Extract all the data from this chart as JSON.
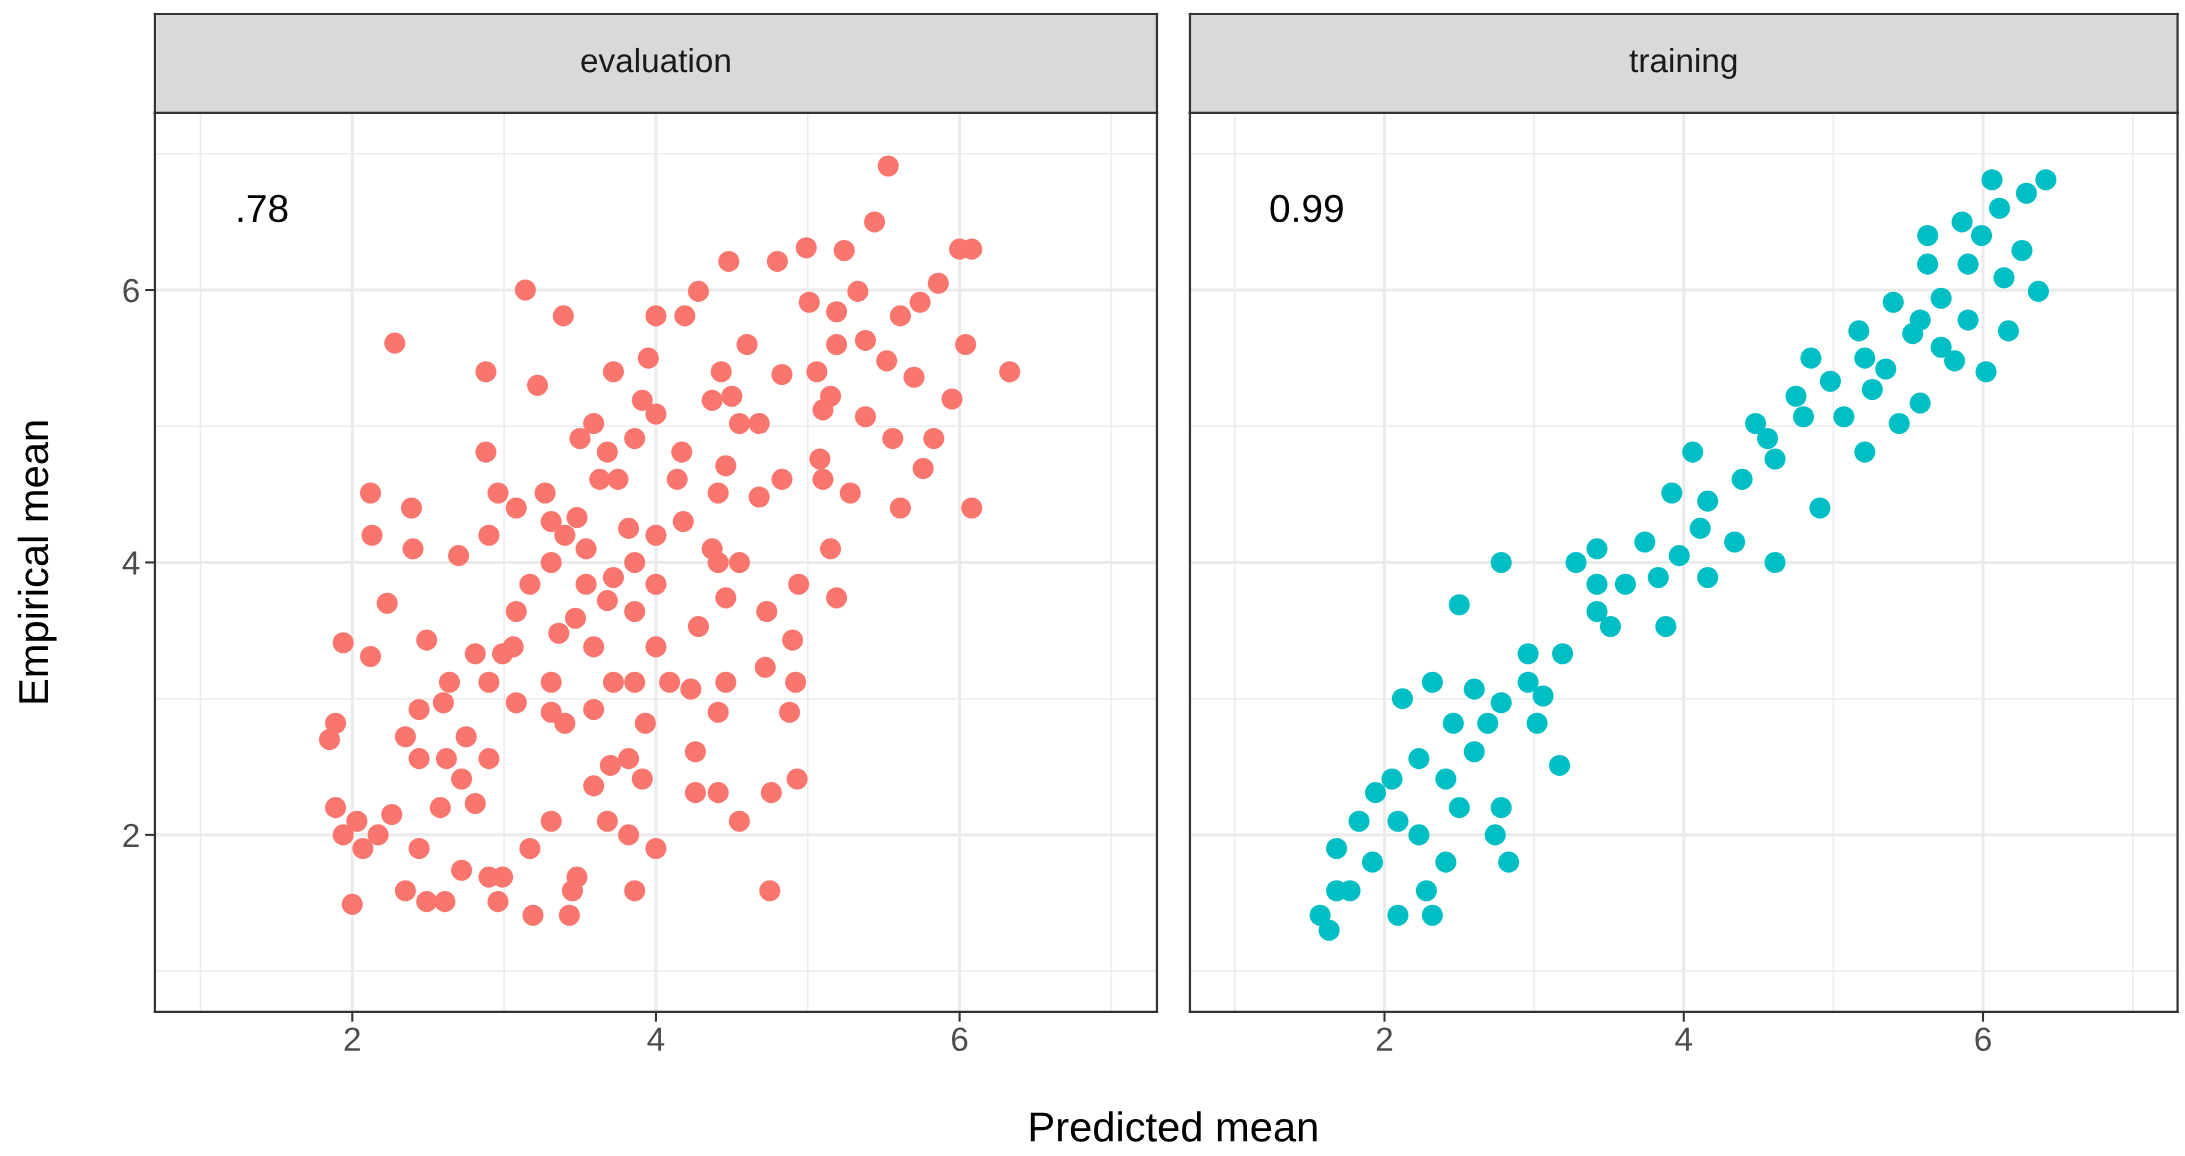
{
  "chart_data": [
    {
      "type": "scatter",
      "title": "evaluation",
      "xlabel": "Predicted mean",
      "ylabel": "Empirical mean",
      "annotations": [
        ".78"
      ],
      "color": "#f8766d",
      "marker": "circle",
      "grid": true,
      "xlim": [
        0.7,
        7.3
      ],
      "ylim": [
        0.7,
        7.3
      ],
      "xticks": [
        {
          "value": 1,
          "label": null
        },
        2,
        {
          "value": 3,
          "label": null
        },
        4,
        {
          "value": 5,
          "label": null
        },
        6,
        {
          "value": 7,
          "label": null
        }
      ],
      "yticks": [
        {
          "value": 1,
          "label": null
        },
        2,
        {
          "value": 3,
          "label": null
        },
        4,
        {
          "value": 5,
          "label": null
        },
        6,
        {
          "value": 7,
          "label": null
        }
      ],
      "x": [
        5.53,
        5.44,
        5.24,
        4.99,
        4.8,
        4.48,
        4.28,
        3.14,
        2.28,
        3.39,
        2.88,
        3.22,
        4.0,
        4.19,
        6.0,
        6.08,
        6.33,
        6.08,
        6.04,
        5.86,
        5.74,
        5.61,
        5.38,
        5.7,
        5.95,
        5.83,
        5.76,
        5.61,
        5.28,
        5.15,
        5.19,
        4.94,
        4.73,
        4.72,
        4.9,
        4.88,
        4.93,
        4.75,
        4.76,
        4.55,
        4.41,
        4.26,
        4.26,
        4.41,
        4.23,
        4.0,
        4.09,
        3.93,
        3.91,
        4.0,
        3.86,
        3.82,
        3.7,
        3.59,
        3.45,
        3.48,
        3.19,
        3.43,
        2.96,
        2.99,
        2.9,
        3.17,
        2.72,
        2.61,
        2.49,
        2.35,
        2.0,
        2.07,
        2.17,
        1.94,
        1.89,
        2.03,
        1.89,
        1.85,
        1.94,
        2.12,
        2.12,
        2.13,
        2.23,
        2.39,
        2.4,
        2.44,
        2.35,
        2.44,
        2.49,
        2.64,
        2.6,
        2.62,
        2.72,
        2.75,
        2.81,
        2.7,
        2.9,
        2.88,
        2.96,
        2.99,
        2.9,
        2.9,
        3.08,
        3.06,
        3.08,
        3.17,
        3.08,
        3.27,
        3.31,
        3.48,
        3.5,
        3.59,
        3.72,
        3.68,
        3.63,
        3.75,
        3.86,
        3.91,
        3.95,
        4.0,
        4.17,
        4.14,
        4.18,
        4.0,
        3.86,
        3.72,
        3.54,
        3.47,
        3.36,
        3.31,
        3.31,
        3.4,
        3.59,
        3.72,
        3.86,
        3.59,
        3.68,
        3.54,
        3.31,
        3.4,
        4.37,
        4.41,
        4.46,
        4.55,
        4.41,
        4.46,
        4.55,
        4.68,
        4.5,
        4.37,
        4.43,
        4.6,
        4.83,
        5.06,
        5.15,
        5.1,
        5.19,
        5.33,
        5.19,
        5.01,
        4.83,
        4.68,
        5.1,
        5.08,
        5.38,
        5.52,
        5.56,
        4.28,
        4.92,
        4.46,
        2.44,
        2.26,
        2.81,
        2.58,
        3.68,
        3.31,
        3.82,
        4.0,
        3.82,
        3.86
      ],
      "values": [
        6.91,
        6.5,
        6.29,
        6.31,
        6.21,
        6.21,
        5.99,
        6.0,
        5.61,
        5.81,
        5.4,
        5.3,
        5.81,
        5.81,
        6.3,
        6.3,
        5.4,
        4.4,
        5.6,
        6.05,
        5.91,
        5.81,
        5.63,
        5.36,
        5.2,
        4.91,
        4.69,
        4.4,
        4.51,
        4.1,
        3.74,
        3.84,
        3.64,
        3.23,
        3.43,
        2.9,
        2.41,
        1.59,
        2.31,
        2.1,
        2.31,
        2.31,
        2.61,
        2.9,
        3.07,
        3.38,
        3.12,
        2.82,
        2.41,
        1.9,
        1.59,
        2.0,
        2.51,
        2.36,
        1.59,
        1.69,
        1.41,
        1.41,
        1.51,
        1.69,
        1.69,
        1.9,
        1.74,
        1.51,
        1.51,
        1.59,
        1.49,
        1.9,
        2.0,
        2.0,
        2.2,
        2.1,
        2.82,
        2.7,
        3.41,
        3.31,
        4.51,
        4.2,
        3.7,
        4.4,
        4.1,
        2.92,
        2.72,
        2.56,
        3.43,
        3.12,
        2.97,
        2.56,
        2.41,
        2.72,
        3.33,
        4.05,
        4.2,
        4.81,
        4.51,
        3.33,
        3.12,
        2.56,
        2.97,
        3.38,
        3.64,
        3.84,
        4.4,
        4.51,
        4.3,
        4.33,
        4.91,
        5.02,
        5.4,
        4.81,
        4.61,
        4.61,
        4.91,
        5.19,
        5.5,
        5.09,
        4.81,
        4.61,
        4.3,
        4.2,
        4.0,
        3.89,
        3.84,
        3.59,
        3.48,
        3.12,
        2.9,
        2.82,
        2.92,
        3.12,
        3.12,
        3.38,
        3.72,
        4.1,
        4.0,
        4.2,
        4.1,
        4.0,
        3.74,
        4.0,
        4.51,
        4.71,
        5.02,
        5.02,
        5.22,
        5.19,
        5.4,
        5.6,
        5.38,
        5.4,
        5.22,
        5.12,
        5.84,
        5.99,
        5.6,
        5.91,
        4.61,
        4.48,
        4.61,
        4.76,
        5.07,
        5.48,
        4.91,
        3.53,
        3.12,
        3.12,
        1.9,
        2.15,
        2.23,
        2.2,
        2.1,
        2.1,
        2.56,
        3.84,
        4.25,
        3.64
      ]
    },
    {
      "type": "scatter",
      "title": "training",
      "annotations": [
        "0.99"
      ],
      "color": "#00bfc4",
      "marker": "circle",
      "grid": true,
      "tick_labels": "x",
      "xlim": [
        0.7,
        7.3
      ],
      "ylim": [
        0.7,
        7.3
      ],
      "xticks": [
        {
          "value": 1,
          "label": null
        },
        2,
        {
          "value": 3,
          "label": null
        },
        4,
        {
          "value": 5,
          "label": null
        },
        6,
        {
          "value": 7,
          "label": null
        }
      ],
      "yticks": [
        {
          "value": 1,
          "label": null
        },
        2,
        {
          "value": 3,
          "label": null
        },
        4,
        {
          "value": 5,
          "label": null
        },
        6,
        {
          "value": 7,
          "label": null
        }
      ],
      "x": [
        6.42,
        6.29,
        6.11,
        6.06,
        5.86,
        5.63,
        5.63,
        6.37,
        6.26,
        6.17,
        6.02,
        5.81,
        5.58,
        5.44,
        5.17,
        5.4,
        4.85,
        5.21,
        4.91,
        4.61,
        4.06,
        4.56,
        3.92,
        3.83,
        3.88,
        3.28,
        3.42,
        2.78,
        2.5,
        2.78,
        3.17,
        3.06,
        2.78,
        2.74,
        2.83,
        2.41,
        2.28,
        2.32,
        2.09,
        1.63,
        1.57,
        1.68,
        1.68,
        1.83,
        1.94,
        2.12,
        2.05,
        2.23,
        2.32,
        2.46,
        2.6,
        2.6,
        2.41,
        2.96,
        3.19,
        3.42,
        3.61,
        3.74,
        4.11,
        4.16,
        4.39,
        4.48,
        4.8,
        4.98,
        5.21,
        5.53,
        5.72,
        5.9,
        5.99,
        4.34,
        4.16,
        3.51,
        2.5,
        2.23,
        1.92,
        3.02,
        3.42,
        4.61,
        5.07,
        4.75,
        5.35,
        5.72,
        5.9,
        3.97,
        2.96,
        2.69,
        2.09,
        1.77,
        5.26,
        6.14,
        5.58
      ],
      "values": [
        6.81,
        6.71,
        6.6,
        6.81,
        6.5,
        6.4,
        6.19,
        5.99,
        6.29,
        5.7,
        5.4,
        5.48,
        5.17,
        5.02,
        5.7,
        5.91,
        5.5,
        4.81,
        4.4,
        4.0,
        4.81,
        4.91,
        4.51,
        3.89,
        3.53,
        4.0,
        4.1,
        4.0,
        3.69,
        2.97,
        2.51,
        3.02,
        2.2,
        2.0,
        1.8,
        1.8,
        1.59,
        1.41,
        1.41,
        1.3,
        1.41,
        1.59,
        1.9,
        2.1,
        2.31,
        3.0,
        2.41,
        2.56,
        3.12,
        2.82,
        3.07,
        2.61,
        2.41,
        3.33,
        3.33,
        3.64,
        3.84,
        4.15,
        4.25,
        4.45,
        4.61,
        5.02,
        5.07,
        5.33,
        5.5,
        5.68,
        5.94,
        6.19,
        6.4,
        4.15,
        3.89,
        3.53,
        2.2,
        2.0,
        1.8,
        2.82,
        3.84,
        4.76,
        5.07,
        5.22,
        5.42,
        5.58,
        5.78,
        4.05,
        3.12,
        2.82,
        2.1,
        1.59,
        5.27,
        6.09,
        5.78
      ]
    }
  ]
}
